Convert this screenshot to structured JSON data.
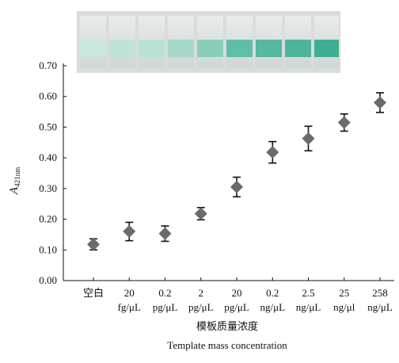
{
  "chart_data": {
    "type": "errorbar",
    "y_label": "A",
    "y_label_sub": "421nm",
    "x_label": "模板质量浓度",
    "x_label_en": "Template mass concentration",
    "categories": [
      [
        "空白"
      ],
      [
        "20",
        "fg/μL"
      ],
      [
        "0.2",
        "pg/μL"
      ],
      [
        "2",
        "pg/μL"
      ],
      [
        "20",
        "pg/μL"
      ],
      [
        "0.2",
        "ng/μL"
      ],
      [
        "2.5",
        "ng/μL"
      ],
      [
        "25",
        "ng/μl"
      ],
      [
        "258",
        "ng/μL"
      ]
    ],
    "values": [
      0.118,
      0.16,
      0.153,
      0.218,
      0.305,
      0.418,
      0.463,
      0.515,
      0.58
    ],
    "errors": [
      0.018,
      0.03,
      0.025,
      0.02,
      0.032,
      0.035,
      0.04,
      0.028,
      0.032
    ],
    "color": "#6b6b6b",
    "ylim": [
      0,
      0.7
    ],
    "yticks": [
      {
        "value": 0,
        "label": "0.00"
      },
      {
        "value": 0.1,
        "label": "0.10"
      },
      {
        "value": 0.2,
        "label": "0.20"
      },
      {
        "value": 0.3,
        "label": "0.30"
      },
      {
        "value": 0.4,
        "label": "0.40"
      },
      {
        "value": 0.5,
        "label": "0.50"
      },
      {
        "value": 0.6,
        "label": "0.60"
      },
      {
        "value": 0.7,
        "label": "0.70"
      }
    ]
  }
}
